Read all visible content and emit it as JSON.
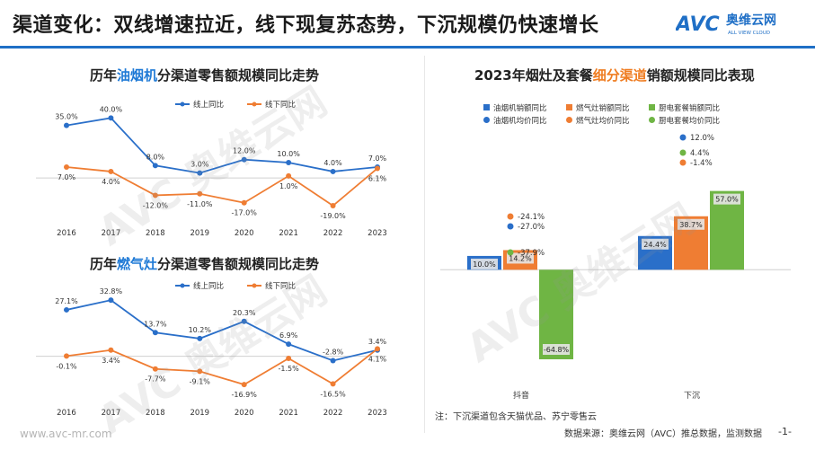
{
  "header": {
    "title": "渠道变化：双线增速拉近，线下现复苏态势，下沉规模仍快速增长",
    "logo_text": "AVC",
    "logo_cn": "奥维云网",
    "logo_en": "ALL VIEW CLOUD",
    "accent_color": "#1f6fc6"
  },
  "panels": {
    "hood_title_pre": "历年",
    "hood_title_hl": "油烟机",
    "hood_title_post": "分渠道零售额规模同比走势",
    "stove_title_pre": "历年",
    "stove_title_hl": "燃气灶",
    "stove_title_post": "分渠道零售额规模同比走势",
    "right_title_pre": "2023年烟灶及套餐",
    "right_title_hl": "细分渠道",
    "right_title_post": "销额规模同比表现"
  },
  "chart_data": [
    {
      "type": "line",
      "title": "历年油烟机分渠道零售额规模同比走势",
      "x": [
        "2016",
        "2017",
        "2018",
        "2019",
        "2020",
        "2021",
        "2022",
        "2023"
      ],
      "series": [
        {
          "name": "线上同比",
          "color": "#2a6fc9",
          "values": [
            35.0,
            40.0,
            8.0,
            3.0,
            12.0,
            10.0,
            4.0,
            7.0
          ],
          "labels": [
            "35.0%",
            "40.0%",
            "8.0%",
            "3.0%",
            "12.0%",
            "10.0%",
            "4.0%",
            "7.0%"
          ]
        },
        {
          "name": "线下同比",
          "color": "#ef7d33",
          "values": [
            7.0,
            4.0,
            -12.0,
            -11.0,
            -17.0,
            1.0,
            -19.0,
            6.1
          ],
          "labels": [
            "7.0%",
            "4.0%",
            "-12.0%",
            "-11.0%",
            "-17.0%",
            "1.0%",
            "-19.0%",
            "6.1%"
          ]
        }
      ],
      "ylim": [
        -22,
        42
      ],
      "grid": false,
      "legend": "top-right"
    },
    {
      "type": "line",
      "title": "历年燃气灶分渠道零售额规模同比走势",
      "x": [
        "2016",
        "2017",
        "2018",
        "2019",
        "2020",
        "2021",
        "2022",
        "2023"
      ],
      "series": [
        {
          "name": "线上同比",
          "color": "#2a6fc9",
          "values": [
            27.1,
            32.8,
            13.7,
            10.2,
            20.3,
            6.9,
            -2.8,
            3.4
          ],
          "labels": [
            "27.1%",
            "32.8%",
            "13.7%",
            "10.2%",
            "20.3%",
            "6.9%",
            "-2.8%",
            "3.4%"
          ]
        },
        {
          "name": "线下同比",
          "color": "#ef7d33",
          "values": [
            -0.1,
            3.4,
            -7.7,
            -9.1,
            -16.9,
            -1.5,
            -16.5,
            4.1
          ],
          "labels": [
            "-0.1%",
            "3.4%",
            "-7.7%",
            "-9.1%",
            "-16.9%",
            "-1.5%",
            "-16.5%",
            "4.1%"
          ]
        }
      ],
      "ylim": [
        -20,
        35
      ],
      "grid": false,
      "legend": "top-right"
    },
    {
      "type": "bar",
      "title": "2023年烟灶及套餐细分渠道销额规模同比表现",
      "categories": [
        "抖音",
        "下沉"
      ],
      "series": [
        {
          "name": "油烟机销额同比",
          "color": "#2a6fc9",
          "values": [
            10.0,
            24.4
          ],
          "labels": [
            "10.0%",
            "24.4%"
          ]
        },
        {
          "name": "燃气灶销额同比",
          "color": "#ef7d33",
          "values": [
            14.2,
            38.7
          ],
          "labels": [
            "14.2%",
            "38.7%"
          ]
        },
        {
          "name": "厨电套餐销额同比",
          "color": "#6fb544",
          "values": [
            -64.8,
            57.0
          ],
          "labels": [
            "-64.8%",
            "57.0%"
          ]
        }
      ],
      "price_series": [
        {
          "name": "油烟机均价同比",
          "color": "#2a6fc9",
          "values": [
            -27.0,
            12.0
          ],
          "labels": [
            "-27.0%",
            "12.0%"
          ]
        },
        {
          "name": "燃气灶均价同比",
          "color": "#ef7d33",
          "values": [
            -24.1,
            -1.4
          ],
          "labels": [
            "-24.1%",
            "-1.4%"
          ]
        },
        {
          "name": "厨电套餐均价同比",
          "color": "#6fb544",
          "values": [
            -37.9,
            4.4
          ],
          "labels": [
            "-37.9%",
            "4.4%"
          ]
        }
      ],
      "ylim": [
        -70,
        60
      ],
      "legend": "top"
    }
  ],
  "footer": {
    "note": "注：下沉渠道包含天猫优品、苏宁零售云",
    "source": "数据来源：奥维云网（AVC）推总数据，监测数据",
    "page": "-1-",
    "url": "www.avc-mr.com"
  }
}
